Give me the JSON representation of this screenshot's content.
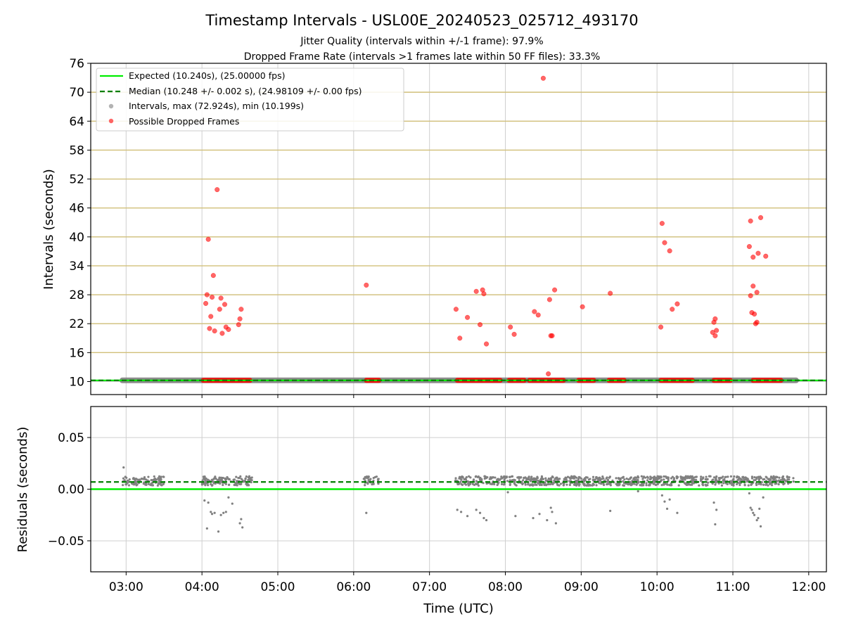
{
  "chart_data": [
    {
      "type": "scatter",
      "title": "Timestamp Intervals - USL00E_20240523_025712_493170",
      "subtitle_lines": [
        "Jitter Quality (intervals within +/-1 frame): 97.9%",
        "Dropped Frame Rate (intervals >1 frames late within 50 FF files): 33.3%"
      ],
      "xlabel": "",
      "ylabel": "Intervals (seconds)",
      "xlim": [
        "02:32",
        "12:14"
      ],
      "ylim": [
        7.3,
        76
      ],
      "x_tick_labels": [
        "03:00",
        "04:00",
        "05:00",
        "06:00",
        "07:00",
        "08:00",
        "09:00",
        "10:00",
        "11:00",
        "12:00"
      ],
      "yticks": [
        10,
        16,
        22,
        28,
        34,
        40,
        46,
        52,
        58,
        64,
        70,
        76
      ],
      "grid": true,
      "legend_position": "top-left",
      "legend": [
        "Expected (10.240s), (25.00000 fps)",
        "Median (10.248 +/- 0.002 s), (24.98109 +/- 0.00 fps)",
        "Intervals, max (72.924s), min (10.199s)",
        "Possible Dropped Frames"
      ],
      "expected_value": 10.24,
      "median_value": 10.248,
      "colors": {
        "expected": "#00ee00",
        "median": "#007f00",
        "intervals": "#808080",
        "dropped": "#ff0000",
        "ref_lines": "#d2c07a"
      },
      "reference_lines": [
        16,
        22,
        28,
        34,
        40,
        46,
        52,
        58,
        64,
        70
      ],
      "interval_segments": [
        [
          "02:57",
          "11:50"
        ]
      ],
      "dropped_base_segments": [
        [
          "04:01",
          "04:38"
        ],
        [
          "06:10",
          "06:20"
        ],
        [
          "07:22",
          "07:56"
        ],
        [
          "08:03",
          "08:15"
        ],
        [
          "08:19",
          "08:46"
        ],
        [
          "08:58",
          "09:10"
        ],
        [
          "09:22",
          "09:34"
        ],
        [
          "10:03",
          "10:28"
        ],
        [
          "10:45",
          "10:58"
        ],
        [
          "11:16",
          "11:38"
        ]
      ],
      "dropped_points": [
        [
          "04:03",
          26.2
        ],
        [
          "04:04",
          28.0
        ],
        [
          "04:05",
          39.5
        ],
        [
          "04:06",
          21.0
        ],
        [
          "04:07",
          23.5
        ],
        [
          "04:08",
          27.5
        ],
        [
          "04:09",
          32.0
        ],
        [
          "04:10",
          20.5
        ],
        [
          "04:12",
          49.8
        ],
        [
          "04:14",
          25.0
        ],
        [
          "04:15",
          27.3
        ],
        [
          "04:16",
          20.0
        ],
        [
          "04:18",
          26.0
        ],
        [
          "04:19",
          21.3
        ],
        [
          "04:21",
          20.8
        ],
        [
          "04:29",
          21.8
        ],
        [
          "04:30",
          23.0
        ],
        [
          "04:31",
          25.0
        ],
        [
          "06:10",
          30.0
        ],
        [
          "07:21",
          25.0
        ],
        [
          "07:24",
          19.0
        ],
        [
          "07:30",
          23.3
        ],
        [
          "07:37",
          28.7
        ],
        [
          "07:40",
          21.8
        ],
        [
          "07:42",
          29.0
        ],
        [
          "07:43",
          28.2
        ],
        [
          "07:45",
          17.8
        ],
        [
          "08:04",
          21.3
        ],
        [
          "08:07",
          19.8
        ],
        [
          "08:23",
          24.5
        ],
        [
          "08:26",
          23.8
        ],
        [
          "08:30",
          72.9
        ],
        [
          "08:34",
          11.6
        ],
        [
          "08:35",
          27.0
        ],
        [
          "08:36",
          19.5
        ],
        [
          "08:37",
          19.5
        ],
        [
          "08:39",
          29.0
        ],
        [
          "09:01",
          25.5
        ],
        [
          "09:23",
          28.3
        ],
        [
          "10:03",
          21.3
        ],
        [
          "10:04",
          42.8
        ],
        [
          "10:06",
          38.8
        ],
        [
          "10:10",
          37.1
        ],
        [
          "10:12",
          25.0
        ],
        [
          "10:16",
          26.1
        ],
        [
          "10:44",
          20.2
        ],
        [
          "10:45",
          22.3
        ],
        [
          "10:46",
          23.0
        ],
        [
          "10:46",
          19.5
        ],
        [
          "10:47",
          20.6
        ],
        [
          "11:13",
          38.0
        ],
        [
          "11:14",
          43.3
        ],
        [
          "11:14",
          27.8
        ],
        [
          "11:15",
          24.3
        ],
        [
          "11:16",
          29.8
        ],
        [
          "11:16",
          35.8
        ],
        [
          "11:17",
          24.0
        ],
        [
          "11:18",
          22.0
        ],
        [
          "11:19",
          22.3
        ],
        [
          "11:19",
          28.5
        ],
        [
          "11:20",
          36.6
        ],
        [
          "11:22",
          44.0
        ],
        [
          "11:26",
          36.0
        ]
      ]
    },
    {
      "type": "scatter",
      "title": "",
      "xlabel": "Time (UTC)",
      "ylabel": "Residuals (seconds)",
      "xlim": [
        "02:32",
        "12:14"
      ],
      "ylim": [
        -0.08,
        0.08
      ],
      "yticks": [
        -0.05,
        0.0,
        0.05
      ],
      "ytick_labels": [
        "−0.05",
        "0.00",
        "0.05"
      ],
      "grid": true,
      "expected_value": 0.0,
      "median_value": 0.007,
      "residual_bands": [
        [
          "02:57",
          "03:30",
          0.008
        ],
        [
          "04:00",
          "04:40",
          0.008
        ],
        [
          "06:08",
          "06:20",
          0.008
        ],
        [
          "07:20",
          "11:48",
          0.008
        ]
      ],
      "residual_outliers": [
        [
          "02:58",
          0.021
        ],
        [
          "04:02",
          -0.011
        ],
        [
          "04:04",
          -0.038
        ],
        [
          "04:05",
          -0.013
        ],
        [
          "04:07",
          -0.022
        ],
        [
          "04:08",
          -0.024
        ],
        [
          "04:10",
          -0.023
        ],
        [
          "04:13",
          -0.041
        ],
        [
          "04:15",
          -0.025
        ],
        [
          "04:17",
          -0.023
        ],
        [
          "04:19",
          -0.022
        ],
        [
          "04:21",
          -0.008
        ],
        [
          "04:24",
          -0.014
        ],
        [
          "04:30",
          -0.033
        ],
        [
          "04:31",
          -0.029
        ],
        [
          "04:32",
          -0.037
        ],
        [
          "06:10",
          -0.023
        ],
        [
          "07:22",
          -0.02
        ],
        [
          "07:25",
          -0.022
        ],
        [
          "07:30",
          -0.026
        ],
        [
          "07:37",
          -0.02
        ],
        [
          "07:40",
          -0.023
        ],
        [
          "07:43",
          -0.028
        ],
        [
          "07:45",
          -0.03
        ],
        [
          "08:02",
          -0.003
        ],
        [
          "08:08",
          -0.026
        ],
        [
          "08:22",
          -0.028
        ],
        [
          "08:27",
          -0.024
        ],
        [
          "08:33",
          -0.03
        ],
        [
          "08:36",
          -0.018
        ],
        [
          "08:37",
          -0.022
        ],
        [
          "08:40",
          -0.033
        ],
        [
          "09:23",
          -0.021
        ],
        [
          "09:45",
          -0.002
        ],
        [
          "10:04",
          -0.006
        ],
        [
          "10:06",
          -0.012
        ],
        [
          "10:08",
          -0.019
        ],
        [
          "10:10",
          -0.01
        ],
        [
          "10:16",
          -0.023
        ],
        [
          "10:45",
          -0.013
        ],
        [
          "10:46",
          -0.034
        ],
        [
          "10:47",
          -0.02
        ],
        [
          "11:13",
          -0.004
        ],
        [
          "11:14",
          -0.018
        ],
        [
          "11:15",
          -0.02
        ],
        [
          "11:16",
          -0.023
        ],
        [
          "11:17",
          -0.025
        ],
        [
          "11:19",
          -0.03
        ],
        [
          "11:20",
          -0.028
        ],
        [
          "11:21",
          -0.019
        ],
        [
          "11:22",
          -0.036
        ],
        [
          "11:24",
          -0.008
        ]
      ]
    }
  ]
}
